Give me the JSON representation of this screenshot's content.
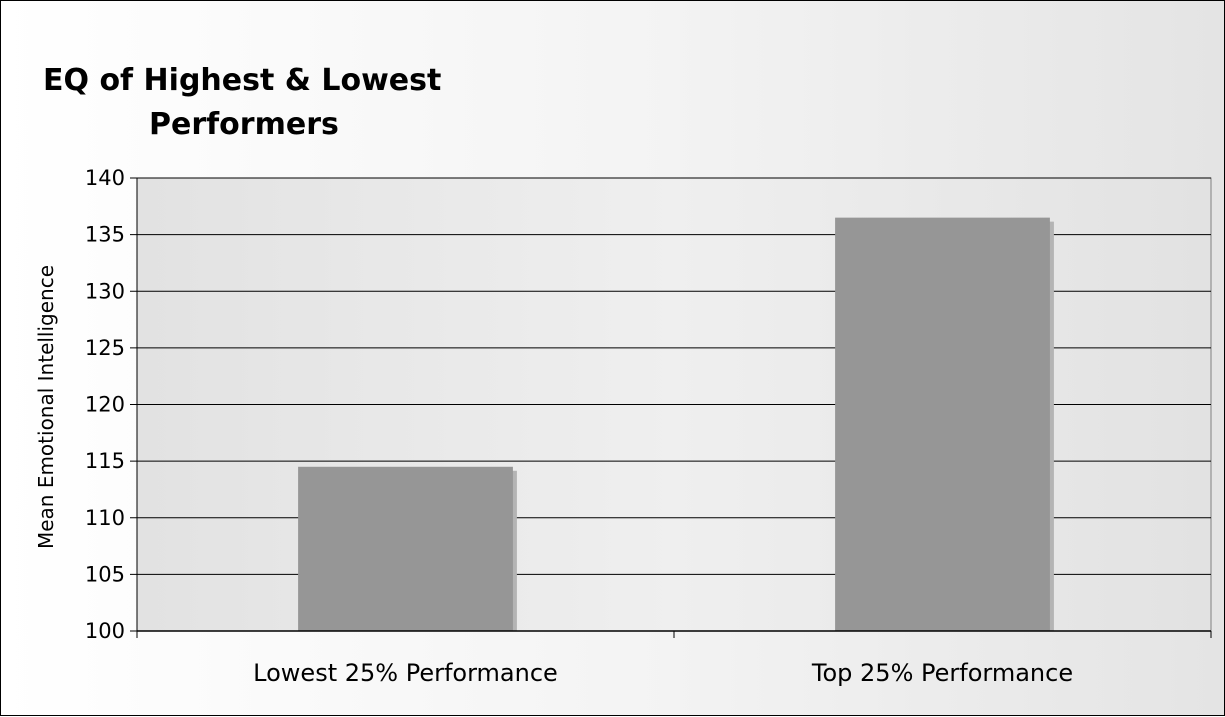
{
  "chart_data": {
    "type": "bar",
    "title_lines": [
      "EQ of Highest & Lowest",
      "Performers"
    ],
    "xlabel": "",
    "ylabel": "Mean Emotional Intelligence",
    "categories": [
      "Lowest 25% Performance",
      "Top 25% Performance"
    ],
    "values": [
      114.5,
      136.5
    ],
    "ylim": [
      100,
      140
    ],
    "yticks": [
      100,
      105,
      110,
      115,
      120,
      125,
      130,
      135,
      140
    ],
    "grid": true,
    "legend": "none",
    "bar_color": "#969696",
    "bar_shadow_color": "#b4b4b4",
    "plot_background": "#e8e8e8"
  }
}
